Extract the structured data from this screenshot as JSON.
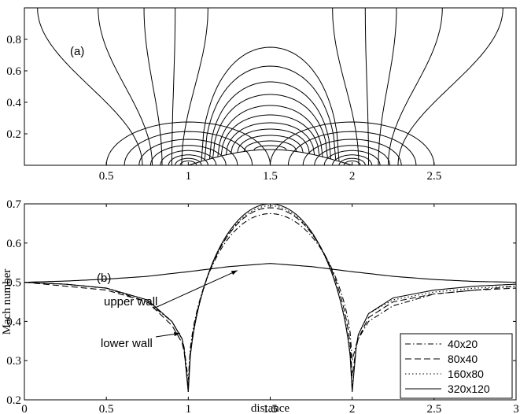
{
  "chart_data": [
    {
      "type": "contour",
      "panel_label": "(a)",
      "xlim": [
        0,
        3
      ],
      "ylim": [
        0,
        1
      ],
      "xticks": [
        "0.5",
        "1",
        "1.5",
        "2",
        "2.5"
      ],
      "yticks": [
        "0.2",
        "0.4",
        "0.6",
        "0.8"
      ],
      "bump": {
        "x_start": 1.0,
        "x_end": 2.0,
        "height": 0.1
      },
      "outer_lines": [
        {
          "x_base": 0.72,
          "x_top": 0.08
        },
        {
          "x_base": 0.78,
          "x_top": 0.45
        },
        {
          "x_base": 0.84,
          "x_top": 0.73
        },
        {
          "x_base": 0.9,
          "x_top": 0.92
        },
        {
          "x_base": 0.96,
          "x_top": 1.12
        },
        {
          "x_base": 2.04,
          "x_top": 1.88
        },
        {
          "x_base": 2.1,
          "x_top": 2.08
        },
        {
          "x_base": 2.16,
          "x_top": 2.27
        },
        {
          "x_base": 2.22,
          "x_top": 2.55
        },
        {
          "x_base": 2.28,
          "x_top": 2.92
        }
      ],
      "corner_semicircle_radii": [
        0.5,
        0.39,
        0.3,
        0.23,
        0.17,
        0.12,
        0.08,
        0.05
      ],
      "center_arcs": [
        {
          "halfwidth": 0.42,
          "peak": 0.75
        },
        {
          "halfwidth": 0.4,
          "peak": 0.63
        },
        {
          "halfwidth": 0.37,
          "peak": 0.53
        },
        {
          "halfwidth": 0.35,
          "peak": 0.45
        },
        {
          "halfwidth": 0.32,
          "peak": 0.38
        },
        {
          "halfwidth": 0.3,
          "peak": 0.32
        },
        {
          "halfwidth": 0.27,
          "peak": 0.27
        },
        {
          "halfwidth": 0.24,
          "peak": 0.23
        },
        {
          "halfwidth": 0.2,
          "peak": 0.19
        },
        {
          "halfwidth": 0.16,
          "peak": 0.155
        },
        {
          "halfwidth": 0.1,
          "peak": 0.125
        }
      ]
    },
    {
      "type": "line",
      "panel_label": "(b)",
      "xlabel": "distance",
      "ylabel": "Mach number",
      "xlim": [
        0,
        3
      ],
      "ylim": [
        0.2,
        0.7
      ],
      "xticks": [
        "0",
        "0.5",
        "1",
        "1.5",
        "2",
        "2.5",
        "3"
      ],
      "yticks": [
        "0.2",
        "0.3",
        "0.4",
        "0.5",
        "0.6",
        "0.7"
      ],
      "annotations": [
        {
          "text": "upper wall",
          "points_to": [
            1.3,
            0.53
          ]
        },
        {
          "text": "lower wall",
          "points_to": [
            0.95,
            0.37
          ]
        }
      ],
      "legend": {
        "placement": "bottom-right"
      },
      "series": [
        {
          "name": "40x20",
          "dash": "7,3,1.5,3",
          "lower_wall": {
            "peak": 0.675,
            "x": [
              0,
              0.25,
              0.5,
              0.75,
              0.9,
              0.97,
              1.0,
              2.0,
              2.03,
              2.1,
              2.25,
              2.5,
              2.75,
              3.0
            ],
            "y": [
              0.5,
              0.495,
              0.485,
              0.45,
              0.4,
              0.35,
              0.25,
              0.3,
              0.35,
              0.4,
              0.44,
              0.47,
              0.48,
              0.49
            ]
          }
        },
        {
          "name": "80x40",
          "dash": "8,4",
          "lower_wall": {
            "peak": 0.69,
            "x": [
              0,
              0.25,
              0.5,
              0.75,
              0.9,
              0.97,
              1.0,
              2.0,
              2.03,
              2.1,
              2.25,
              2.5,
              2.75,
              3.0
            ],
            "y": [
              0.5,
              0.49,
              0.48,
              0.45,
              0.39,
              0.34,
              0.23,
              0.26,
              0.35,
              0.41,
              0.45,
              0.47,
              0.48,
              0.485
            ]
          }
        },
        {
          "name": "160x80",
          "dash": "1.5,3",
          "lower_wall": {
            "peak": 0.695,
            "x": [
              0,
              0.25,
              0.5,
              0.75,
              0.9,
              0.97,
              1.0,
              2.0,
              2.03,
              2.1,
              2.25,
              2.5,
              2.75,
              3.0
            ],
            "y": [
              0.5,
              0.495,
              0.485,
              0.455,
              0.4,
              0.35,
              0.22,
              0.23,
              0.36,
              0.42,
              0.455,
              0.475,
              0.485,
              0.49
            ]
          }
        },
        {
          "name": "320x120",
          "dash": "",
          "lower_wall": {
            "peak": 0.7,
            "x": [
              0,
              0.25,
              0.5,
              0.75,
              0.9,
              0.97,
              1.0,
              2.0,
              2.03,
              2.1,
              2.25,
              2.5,
              2.75,
              3.0
            ],
            "y": [
              0.5,
              0.495,
              0.485,
              0.455,
              0.4,
              0.35,
              0.22,
              0.22,
              0.36,
              0.42,
              0.46,
              0.48,
              0.49,
              0.495
            ]
          }
        }
      ],
      "upper_wall": {
        "x": [
          0,
          0.25,
          0.5,
          0.75,
          1.0,
          1.25,
          1.5,
          1.75,
          2.0,
          2.25,
          2.5,
          2.75,
          3.0
        ],
        "y": [
          0.5,
          0.503,
          0.508,
          0.515,
          0.527,
          0.54,
          0.548,
          0.54,
          0.527,
          0.515,
          0.507,
          0.502,
          0.5
        ]
      }
    }
  ]
}
